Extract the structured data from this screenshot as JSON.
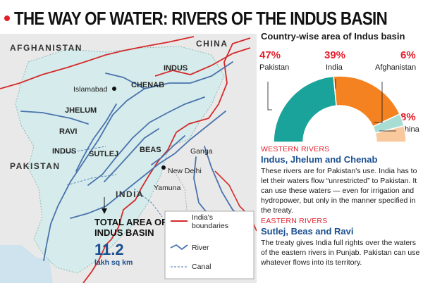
{
  "title": "THE WAY OF WATER: RIVERS OF THE INDUS BASIN",
  "colors": {
    "accent": "#e2202c",
    "heading_blue": "#1a4f8f",
    "basin_fill": "#d6ecec",
    "land": "#e9e9e9",
    "river": "#4a73ad",
    "border": "#d42a2a",
    "pakistan": "#1aa39a",
    "india": "#f58220",
    "afghanistan": "#a8ddd4",
    "china": "#f8c99c"
  },
  "map": {
    "country_labels": [
      "AFGHANISTAN",
      "CHINA",
      "PAKISTAN",
      "INDIA"
    ],
    "river_labels": [
      "INDUS",
      "CHENAB",
      "JHELUM",
      "RAVI",
      "INDUS",
      "SUTLEJ",
      "BEAS"
    ],
    "minor_labels": [
      "Ganga",
      "Yamuna"
    ],
    "cities": [
      "Islamabad",
      "New Delhi"
    ],
    "total": {
      "label_line1": "TOTAL AREA OF",
      "label_line2": "INDUS BASIN",
      "value": "11.2",
      "unit": "lakh sq km"
    },
    "legend": {
      "boundaries": "India's boundaries",
      "river": "River",
      "canal": "Canal"
    }
  },
  "chart_data": {
    "type": "pie",
    "title": "Country-wise area of Indus basin",
    "style": "half-donut",
    "categories": [
      "Pakistan",
      "India",
      "Afghanistan",
      "China"
    ],
    "values": [
      47,
      39,
      6,
      8
    ],
    "value_labels": [
      "47%",
      "39%",
      "6%",
      "8%"
    ],
    "colors": [
      "#1aa39a",
      "#f58220",
      "#a8ddd4",
      "#f8c99c"
    ]
  },
  "western": {
    "label": "WESTERN RIVERS",
    "heading": "Indus, Jhelum and Chenab",
    "body": "These rivers are for Pakistan's use. India has to let their waters flow “unrestricted” to Pakistan. It can use these waters — even for irrigation and hydropower, but only in the manner specified in the treaty."
  },
  "eastern": {
    "label": "EASTERN RIVERS",
    "heading": "Sutlej, Beas and Ravi",
    "body": "The treaty gives India full rights over the waters of the eastern rivers in Punjab. Pakistan can use whatever flows into its territory."
  }
}
